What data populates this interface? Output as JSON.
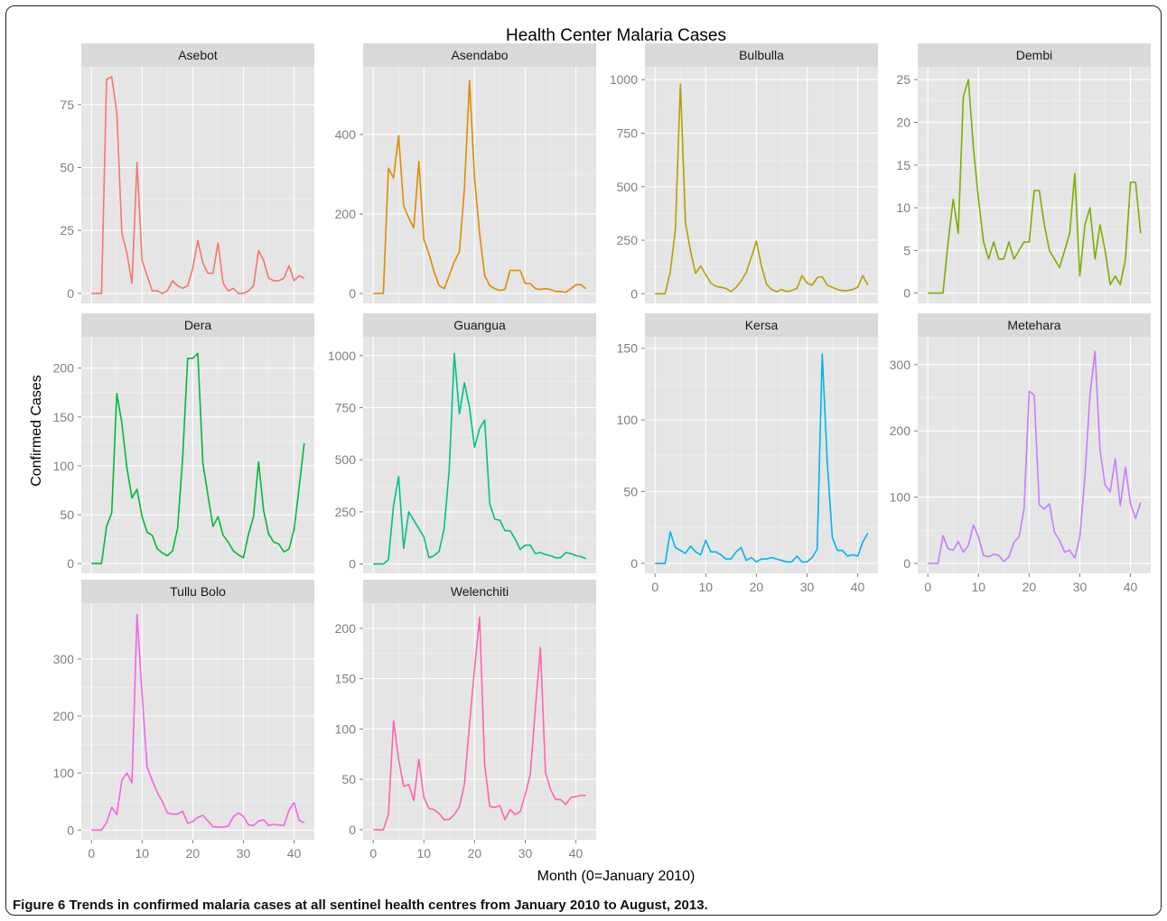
{
  "figure": {
    "caption_label": "Figure 6",
    "caption_text": "Trends in confirmed malaria cases at all sentinel health centres from January 2010 to August, 2013."
  },
  "colors": {
    "panel_bg": "#E5E5E5",
    "strip_bg": "#D9D9D9",
    "grid": "#FFFFFF",
    "tick_text": "#7F7F7F"
  },
  "chart_data": {
    "type": "line",
    "title": "Health Center Malaria Cases",
    "xlabel": "Month (0=January 2010)",
    "ylabel": "Confirmed Cases",
    "x_ticks": [
      0,
      10,
      20,
      30,
      40
    ],
    "x_range": [
      -2,
      44
    ],
    "grid": true,
    "facets": [
      {
        "name": "Asebot",
        "color": "#F8766D",
        "ylim": [
          -4,
          90
        ],
        "y_ticks": [
          0,
          25,
          50,
          75
        ],
        "values": [
          0,
          0,
          0,
          85,
          86,
          72,
          24,
          16,
          4,
          52,
          13,
          7,
          1,
          1,
          0,
          1,
          5,
          3,
          2,
          3,
          10,
          21,
          12,
          8,
          8,
          20,
          4,
          1,
          2,
          0,
          0,
          1,
          3,
          17,
          13,
          6,
          5,
          5,
          6,
          11,
          5,
          7,
          6
        ]
      },
      {
        "name": "Asendabo",
        "color": "#DE8C00",
        "ylim": [
          -25,
          570
        ],
        "y_ticks": [
          0,
          200,
          400
        ],
        "values": [
          0,
          0,
          0,
          315,
          290,
          397,
          220,
          190,
          165,
          332,
          135,
          100,
          55,
          20,
          12,
          45,
          80,
          105,
          265,
          535,
          290,
          150,
          45,
          20,
          12,
          8,
          10,
          58,
          58,
          58,
          25,
          25,
          12,
          10,
          12,
          10,
          5,
          5,
          3,
          12,
          22,
          22,
          12
        ]
      },
      {
        "name": "Bulbulla",
        "color": "#B79F00",
        "ylim": [
          -45,
          1060
        ],
        "y_ticks": [
          0,
          250,
          500,
          750,
          1000
        ],
        "values": [
          0,
          0,
          0,
          100,
          300,
          980,
          330,
          200,
          95,
          130,
          90,
          50,
          35,
          30,
          25,
          10,
          30,
          60,
          100,
          170,
          245,
          130,
          45,
          20,
          10,
          20,
          10,
          15,
          25,
          85,
          50,
          40,
          75,
          80,
          40,
          30,
          20,
          15,
          15,
          20,
          30,
          85,
          40
        ]
      },
      {
        "name": "Dembi",
        "color": "#7CAE00",
        "ylim": [
          -1.2,
          26.5
        ],
        "y_ticks": [
          0,
          5,
          10,
          15,
          20,
          25
        ],
        "values": [
          0,
          0,
          0,
          0,
          6,
          11,
          7,
          23,
          25,
          17,
          11,
          6,
          4,
          6,
          4,
          4,
          6,
          4,
          5,
          6,
          6,
          12,
          12,
          8,
          5,
          4,
          3,
          5,
          7,
          14,
          2,
          8,
          10,
          4,
          8,
          5,
          1,
          2,
          1,
          4,
          13,
          13,
          7
        ]
      },
      {
        "name": "Dera",
        "color": "#00BA38",
        "ylim": [
          -10,
          232
        ],
        "y_ticks": [
          0,
          50,
          100,
          150,
          200
        ],
        "values": [
          0,
          0,
          0,
          38,
          52,
          174,
          144,
          98,
          67,
          76,
          48,
          32,
          29,
          15,
          11,
          8,
          13,
          36,
          108,
          210,
          210,
          215,
          103,
          70,
          38,
          48,
          29,
          22,
          13,
          9,
          6,
          30,
          48,
          104,
          54,
          30,
          22,
          20,
          12,
          15,
          35,
          78,
          123
        ]
      },
      {
        "name": "Guangua",
        "color": "#00C08B",
        "ylim": [
          -45,
          1090
        ],
        "y_ticks": [
          0,
          250,
          500,
          750,
          1000
        ],
        "values": [
          0,
          0,
          0,
          20,
          280,
          420,
          75,
          250,
          210,
          170,
          130,
          30,
          40,
          60,
          170,
          450,
          1010,
          720,
          870,
          750,
          560,
          650,
          690,
          290,
          215,
          210,
          160,
          160,
          120,
          70,
          90,
          90,
          50,
          55,
          45,
          40,
          30,
          30,
          55,
          50,
          40,
          35,
          25
        ]
      },
      {
        "name": "Kersa",
        "color": "#00B4EF",
        "ylim": [
          -7,
          158
        ],
        "y_ticks": [
          0,
          50,
          100,
          150
        ],
        "values": [
          0,
          0,
          0,
          22,
          11,
          9,
          7,
          12,
          8,
          6,
          16,
          8,
          8,
          6,
          3,
          3,
          8,
          11,
          2,
          4,
          1,
          3,
          3,
          4,
          3,
          2,
          1,
          1,
          5,
          1,
          1,
          4,
          10,
          146,
          70,
          18,
          9,
          9,
          5,
          6,
          5,
          15,
          21
        ]
      },
      {
        "name": "Metehara",
        "color": "#C77CFF",
        "ylim": [
          -15,
          342
        ],
        "y_ticks": [
          0,
          100,
          200,
          300
        ],
        "values": [
          0,
          0,
          0,
          42,
          22,
          20,
          33,
          17,
          27,
          58,
          40,
          12,
          10,
          14,
          12,
          3,
          10,
          32,
          40,
          83,
          260,
          254,
          88,
          82,
          90,
          47,
          35,
          17,
          20,
          8,
          40,
          130,
          254,
          320,
          170,
          118,
          108,
          158,
          87,
          145,
          90,
          68,
          92
        ]
      },
      {
        "name": "Tullu Bolo",
        "color": "#F564E3",
        "ylim": [
          -17,
          398
        ],
        "y_ticks": [
          0,
          100,
          200,
          300
        ],
        "values": [
          0,
          0,
          0,
          13,
          40,
          27,
          87,
          100,
          83,
          378,
          238,
          110,
          87,
          66,
          50,
          30,
          28,
          28,
          33,
          12,
          15,
          22,
          26,
          16,
          6,
          5,
          5,
          7,
          23,
          30,
          24,
          9,
          8,
          16,
          18,
          8,
          10,
          9,
          8,
          35,
          48,
          17,
          13
        ]
      },
      {
        "name": "Welenchiti",
        "color": "#FF64B0",
        "ylim": [
          -10,
          225
        ],
        "y_ticks": [
          0,
          50,
          100,
          150,
          200
        ],
        "values": [
          0,
          0,
          0,
          15,
          108,
          70,
          43,
          45,
          29,
          70,
          32,
          21,
          20,
          16,
          10,
          10,
          15,
          23,
          45,
          105,
          160,
          211,
          65,
          23,
          22,
          24,
          10,
          20,
          15,
          18,
          35,
          55,
          120,
          181,
          57,
          40,
          30,
          30,
          25,
          32,
          33,
          34,
          34
        ]
      }
    ]
  }
}
